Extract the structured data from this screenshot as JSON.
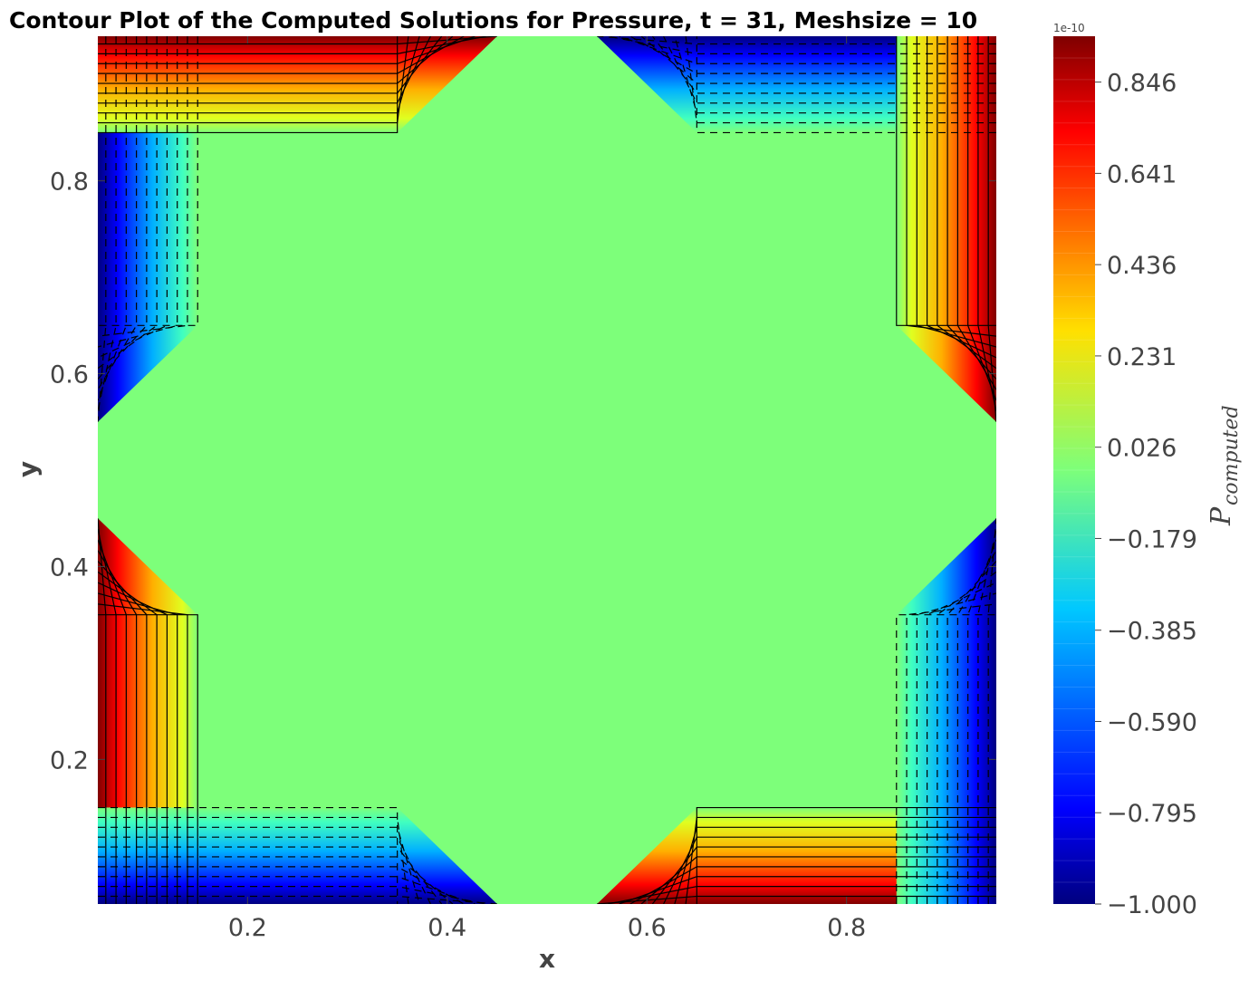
{
  "chart_data": {
    "type": "heatmap",
    "subtype": "filled-contour",
    "title": "Contour Plot of the Computed Solutions for Pressure, t = 31, Meshsize = 10",
    "xlabel": "x",
    "ylabel": "y",
    "xlim": [
      0.05,
      0.95
    ],
    "ylim": [
      0.05,
      0.95
    ],
    "xticks": [
      0.2,
      0.4,
      0.6,
      0.8
    ],
    "xtick_labels": [
      "0.2",
      "0.4",
      "0.6",
      "0.8"
    ],
    "yticks": [
      0.2,
      0.4,
      0.6,
      0.8
    ],
    "ytick_labels": [
      "0.2",
      "0.4",
      "0.6",
      "0.8"
    ],
    "colormap": "jet",
    "grid": false,
    "colorbar": {
      "label_main": "P",
      "label_sub": "computed",
      "offset_text": "1e-10",
      "vmin": -1.0,
      "vmax": 0.949,
      "levels": 40,
      "ticks": [
        -1.0,
        -0.795,
        -0.59,
        -0.385,
        -0.179,
        0.026,
        0.231,
        0.436,
        0.641,
        0.846
      ],
      "tick_labels": [
        "−1.000",
        "−0.795",
        "−0.590",
        "−0.385",
        "−0.179",
        "0.026",
        "0.231",
        "0.436",
        "0.641",
        "0.846"
      ]
    },
    "background_value": 0.0,
    "background_color": "#7dff7a",
    "regions": [
      {
        "name": "left-top",
        "peak": -1.0,
        "x": [
          0.05,
          0.15
        ],
        "y": [
          0.55,
          0.95
        ]
      },
      {
        "name": "top-left",
        "peak": 1.0,
        "x": [
          0.05,
          0.45
        ],
        "y": [
          0.85,
          0.95
        ]
      },
      {
        "name": "top-right",
        "peak": -1.0,
        "x": [
          0.55,
          0.95
        ],
        "y": [
          0.85,
          0.95
        ]
      },
      {
        "name": "right-top",
        "peak": 1.0,
        "x": [
          0.85,
          0.95
        ],
        "y": [
          0.55,
          0.95
        ]
      },
      {
        "name": "left-bottom",
        "peak": 1.0,
        "x": [
          0.05,
          0.15
        ],
        "y": [
          0.05,
          0.45
        ]
      },
      {
        "name": "bottom-left",
        "peak": -1.0,
        "x": [
          0.05,
          0.45
        ],
        "y": [
          0.05,
          0.15
        ]
      },
      {
        "name": "bottom-right",
        "peak": 1.0,
        "x": [
          0.55,
          0.95
        ],
        "y": [
          0.05,
          0.15
        ]
      },
      {
        "name": "right-bottom",
        "peak": -1.0,
        "x": [
          0.85,
          0.95
        ],
        "y": [
          0.05,
          0.45
        ]
      }
    ]
  }
}
